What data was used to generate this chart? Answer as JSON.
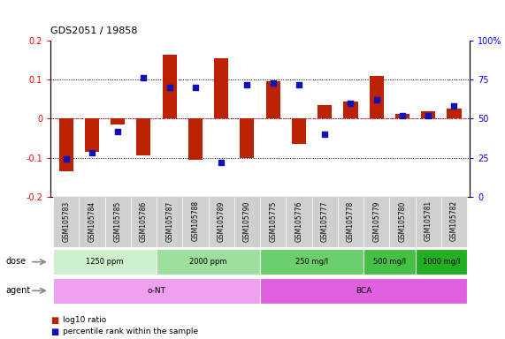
{
  "title": "GDS2051 / 19858",
  "samples": [
    "GSM105783",
    "GSM105784",
    "GSM105785",
    "GSM105786",
    "GSM105787",
    "GSM105788",
    "GSM105789",
    "GSM105790",
    "GSM105775",
    "GSM105776",
    "GSM105777",
    "GSM105778",
    "GSM105779",
    "GSM105780",
    "GSM105781",
    "GSM105782"
  ],
  "log10_ratio": [
    -0.135,
    -0.085,
    -0.015,
    -0.095,
    0.165,
    -0.105,
    0.155,
    -0.102,
    0.095,
    -0.065,
    0.035,
    0.045,
    0.11,
    0.012,
    0.018,
    0.025
  ],
  "percentile": [
    24,
    28,
    42,
    76,
    70,
    70,
    22,
    72,
    73,
    72,
    40,
    60,
    62,
    52,
    52,
    58
  ],
  "dose_groups": [
    {
      "label": "1250 ppm",
      "start": 0,
      "end": 4,
      "color": "#cdf0cd"
    },
    {
      "label": "2000 ppm",
      "start": 4,
      "end": 8,
      "color": "#9de09d"
    },
    {
      "label": "250 mg/l",
      "start": 8,
      "end": 12,
      "color": "#6bcf6b"
    },
    {
      "label": "500 mg/l",
      "start": 12,
      "end": 14,
      "color": "#44c044"
    },
    {
      "label": "1000 mg/l",
      "start": 14,
      "end": 16,
      "color": "#22b022"
    }
  ],
  "agent_groups": [
    {
      "label": "o-NT",
      "start": 0,
      "end": 8,
      "color": "#f0a0f0"
    },
    {
      "label": "BCA",
      "start": 8,
      "end": 16,
      "color": "#e060e0"
    }
  ],
  "bar_color": "#bb2200",
  "dot_color": "#1111bb",
  "ylim_left": [
    -0.2,
    0.2
  ],
  "ylim_right": [
    0,
    100
  ],
  "yticks_left": [
    -0.2,
    -0.1,
    0.0,
    0.1,
    0.2
  ],
  "ytick_labels_left": [
    "-0.2",
    "-0.1",
    "0",
    "0.1",
    "0.2"
  ],
  "yticks_right": [
    0,
    25,
    50,
    75,
    100
  ],
  "ytick_labels_right": [
    "0",
    "25",
    "50",
    "75",
    "100%"
  ],
  "legend_bar_label": "log10 ratio",
  "legend_dot_label": "percentile rank within the sample",
  "background_color": "#ffffff",
  "label_bg_color": "#d0d0d0",
  "bar_width": 0.55
}
